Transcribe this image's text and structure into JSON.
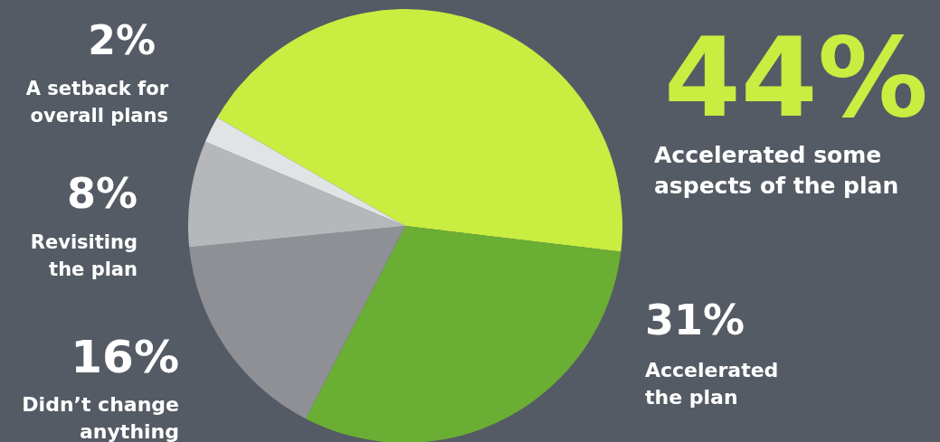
{
  "chart_data": {
    "type": "pie",
    "categories": [
      "Accelerated some aspects of the plan",
      "Accelerated the plan",
      "Didn’t change anything",
      "Revisiting the plan",
      "A setback for overall plans"
    ],
    "values": [
      44,
      31,
      16,
      8,
      2
    ],
    "colors": [
      "#c9ed41",
      "#6aae34",
      "#8e9095",
      "#b5b7ba",
      "#e2e3e5"
    ],
    "value_labels": [
      "44%",
      "31%",
      "16%",
      "8%",
      "2%"
    ]
  }
}
